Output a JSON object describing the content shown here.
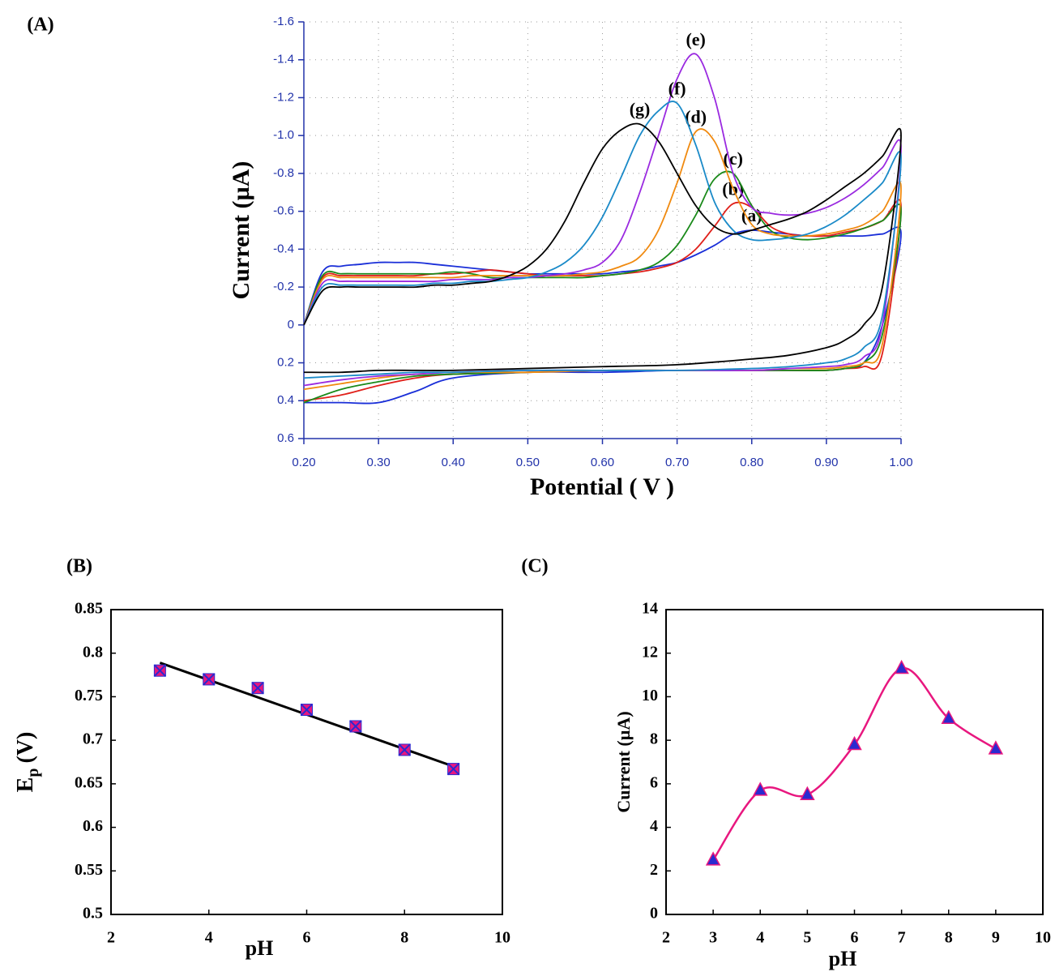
{
  "chart_data": [
    {
      "type": "line",
      "title": "(A)",
      "xlabel": "Potential ( V )",
      "ylabel": "Current  (µA)",
      "smooth": true,
      "grid": true,
      "axis_color": "#2233aa",
      "xlim": [
        0.2,
        1.0
      ],
      "xticks": [
        {
          "value": 0.2,
          "label": "0.20"
        },
        {
          "value": 0.3,
          "label": "0.30"
        },
        {
          "value": 0.4,
          "label": "0.40"
        },
        {
          "value": 0.5,
          "label": "0.50"
        },
        {
          "value": 0.6,
          "label": "0.60"
        },
        {
          "value": 0.7,
          "label": "0.70"
        },
        {
          "value": 0.8,
          "label": "0.80"
        },
        {
          "value": 0.9,
          "label": "0.90"
        },
        {
          "value": 1.0,
          "label": "1.00"
        }
      ],
      "ylim": [
        0.6,
        -1.6
      ],
      "yticks": [
        -1.6,
        -1.4,
        -1.2,
        {
          "value": -1.0,
          "label": "-1.0"
        },
        -0.8,
        -0.6,
        -0.4,
        -0.2,
        0,
        0.2,
        0.4,
        0.6
      ],
      "x": [
        0.2,
        0.225,
        0.25,
        0.275,
        0.3,
        0.325,
        0.35,
        0.375,
        0.4,
        0.425,
        0.45,
        0.475,
        0.5,
        0.525,
        0.55,
        0.575,
        0.6,
        0.625,
        0.65,
        0.675,
        0.7,
        0.725,
        0.75,
        0.775,
        0.8,
        0.825,
        0.85,
        0.875,
        0.9,
        0.925,
        0.95,
        0.975,
        1.0,
        0.975,
        0.95,
        0.925,
        0.9,
        0.85,
        0.8,
        0.7,
        0.6,
        0.5,
        0.4,
        0.35,
        0.3,
        0.25,
        0.2
      ],
      "series": [
        {
          "name": "(a)",
          "color": "#1a2fd8",
          "values": [
            0,
            -0.28,
            -0.31,
            -0.32,
            -0.33,
            -0.33,
            -0.33,
            -0.32,
            -0.31,
            -0.3,
            -0.29,
            -0.28,
            -0.27,
            -0.27,
            -0.27,
            -0.27,
            -0.27,
            -0.28,
            -0.29,
            -0.31,
            -0.33,
            -0.37,
            -0.42,
            -0.48,
            -0.5,
            -0.49,
            -0.48,
            -0.47,
            -0.47,
            -0.47,
            -0.47,
            -0.48,
            -0.48,
            0.0,
            0.2,
            0.23,
            0.24,
            0.24,
            0.24,
            0.24,
            0.25,
            0.25,
            0.28,
            0.35,
            0.41,
            0.41,
            0.41
          ]
        },
        {
          "name": "(b)",
          "color": "#e0201a",
          "values": [
            0,
            -0.25,
            -0.26,
            -0.26,
            -0.26,
            -0.26,
            -0.26,
            -0.27,
            -0.27,
            -0.28,
            -0.29,
            -0.28,
            -0.27,
            -0.26,
            -0.26,
            -0.26,
            -0.26,
            -0.27,
            -0.28,
            -0.3,
            -0.33,
            -0.4,
            -0.52,
            -0.64,
            -0.62,
            -0.52,
            -0.48,
            -0.47,
            -0.47,
            -0.49,
            -0.51,
            -0.55,
            -0.62,
            0.15,
            0.22,
            0.23,
            0.24,
            0.24,
            0.24,
            0.24,
            0.24,
            0.25,
            0.26,
            0.28,
            0.32,
            0.37,
            0.4
          ]
        },
        {
          "name": "(c)",
          "color": "#1a8a1a",
          "values": [
            0,
            -0.26,
            -0.27,
            -0.27,
            -0.27,
            -0.27,
            -0.27,
            -0.27,
            -0.28,
            -0.27,
            -0.25,
            -0.25,
            -0.25,
            -0.25,
            -0.25,
            -0.25,
            -0.26,
            -0.27,
            -0.29,
            -0.33,
            -0.42,
            -0.58,
            -0.77,
            -0.8,
            -0.63,
            -0.5,
            -0.46,
            -0.45,
            -0.46,
            -0.48,
            -0.51,
            -0.55,
            -0.6,
            0.05,
            0.2,
            0.23,
            0.24,
            0.24,
            0.24,
            0.24,
            0.24,
            0.25,
            0.26,
            0.27,
            0.3,
            0.34,
            0.41
          ]
        },
        {
          "name": "(d)",
          "color": "#f08a10",
          "values": [
            0,
            -0.24,
            -0.25,
            -0.25,
            -0.25,
            -0.25,
            -0.25,
            -0.25,
            -0.25,
            -0.26,
            -0.26,
            -0.26,
            -0.26,
            -0.26,
            -0.26,
            -0.27,
            -0.28,
            -0.31,
            -0.36,
            -0.5,
            -0.75,
            -1.02,
            -0.97,
            -0.72,
            -0.53,
            -0.48,
            -0.47,
            -0.47,
            -0.48,
            -0.5,
            -0.53,
            -0.6,
            -0.72,
            0.1,
            0.2,
            0.22,
            0.23,
            0.23,
            0.24,
            0.24,
            0.24,
            0.25,
            0.25,
            0.26,
            0.28,
            0.31,
            0.34
          ]
        },
        {
          "name": "(e)",
          "color": "#9a2ae0",
          "values": [
            0,
            -0.22,
            -0.23,
            -0.23,
            -0.23,
            -0.23,
            -0.23,
            -0.23,
            -0.24,
            -0.24,
            -0.24,
            -0.25,
            -0.25,
            -0.26,
            -0.27,
            -0.29,
            -0.33,
            -0.45,
            -0.7,
            -1.0,
            -1.3,
            -1.43,
            -1.2,
            -0.8,
            -0.62,
            -0.59,
            -0.58,
            -0.59,
            -0.62,
            -0.67,
            -0.74,
            -0.83,
            -0.93,
            0.0,
            0.17,
            0.21,
            0.22,
            0.23,
            0.24,
            0.24,
            0.24,
            0.24,
            0.25,
            0.26,
            0.27,
            0.29,
            0.32
          ]
        },
        {
          "name": "(f)",
          "color": "#1a8ac8",
          "values": [
            0,
            -0.2,
            -0.21,
            -0.21,
            -0.21,
            -0.21,
            -0.21,
            -0.22,
            -0.22,
            -0.23,
            -0.23,
            -0.24,
            -0.25,
            -0.28,
            -0.33,
            -0.42,
            -0.57,
            -0.78,
            -1.0,
            -1.13,
            -1.17,
            -0.95,
            -0.65,
            -0.5,
            -0.45,
            -0.45,
            -0.46,
            -0.48,
            -0.52,
            -0.58,
            -0.66,
            -0.75,
            -0.88,
            -0.05,
            0.12,
            0.18,
            0.2,
            0.22,
            0.23,
            0.24,
            0.24,
            0.24,
            0.25,
            0.25,
            0.26,
            0.27,
            0.28
          ]
        },
        {
          "name": "(g)",
          "color": "#000000",
          "values": [
            0,
            -0.18,
            -0.2,
            -0.2,
            -0.2,
            -0.2,
            -0.2,
            -0.21,
            -0.21,
            -0.22,
            -0.23,
            -0.26,
            -0.31,
            -0.4,
            -0.55,
            -0.75,
            -0.93,
            -1.03,
            -1.06,
            -0.97,
            -0.8,
            -0.63,
            -0.52,
            -0.48,
            -0.5,
            -0.53,
            -0.56,
            -0.6,
            -0.66,
            -0.73,
            -0.8,
            -0.89,
            -1.0,
            -0.2,
            0.0,
            0.08,
            0.12,
            0.16,
            0.18,
            0.21,
            0.22,
            0.23,
            0.24,
            0.24,
            0.24,
            0.25,
            0.25
          ]
        }
      ]
    },
    {
      "type": "scatter",
      "title": "(B)",
      "xlabel": "pH",
      "ylabel": {
        "text": "E",
        "subscript": "p",
        "unit": "(V)"
      },
      "marker": "square-x",
      "color": "#e8177f",
      "marker_edge": "#2a2ad0",
      "xlim": [
        2,
        10
      ],
      "xticks": [
        2,
        4,
        6,
        8,
        10
      ],
      "ylim": [
        0.5,
        0.85
      ],
      "yticks": [
        0.5,
        0.55,
        0.6,
        0.65,
        0.7,
        0.75,
        0.8,
        0.85
      ],
      "x": [
        3,
        4,
        5,
        6,
        7,
        8,
        9
      ],
      "values": [
        0.78,
        0.77,
        0.76,
        0.735,
        0.716,
        0.689,
        0.667
      ],
      "trendline": {
        "color": "#000000",
        "x": [
          3,
          9
        ],
        "values": [
          0.789,
          0.67
        ]
      }
    },
    {
      "type": "line",
      "title": "(C)",
      "xlabel": "pH",
      "ylabel": "Current  (µA)",
      "smooth": true,
      "marker": "triangle",
      "color": "#e8177f",
      "marker_color": "#2a2ad0",
      "xlim": [
        2,
        10
      ],
      "xticks": [
        2,
        3,
        4,
        5,
        6,
        7,
        8,
        9,
        10
      ],
      "ylim": [
        0,
        14
      ],
      "yticks": [
        0,
        2,
        4,
        6,
        8,
        10,
        12,
        14
      ],
      "x": [
        3,
        4,
        5,
        6,
        7,
        8,
        9
      ],
      "values": [
        2.5,
        5.7,
        5.5,
        7.8,
        11.3,
        9.0,
        7.6
      ]
    }
  ]
}
